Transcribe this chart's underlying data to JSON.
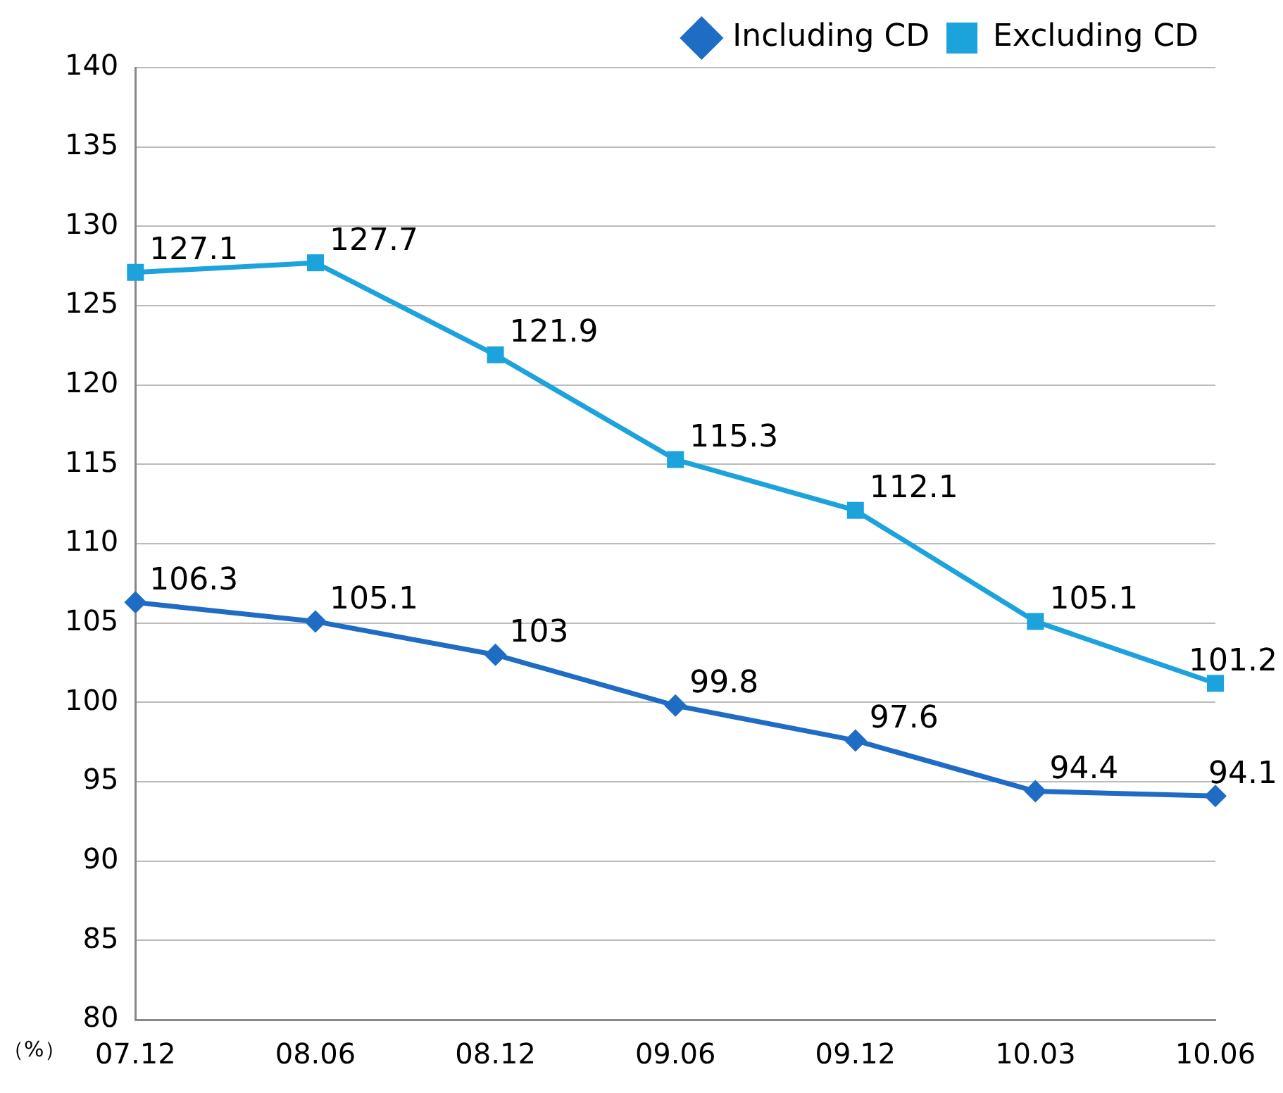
{
  "chart_data": {
    "type": "line",
    "categories": [
      "07.12",
      "08.06",
      "08.12",
      "09.06",
      "09.12",
      "10.03",
      "10.06"
    ],
    "series": [
      {
        "name": "Including CD",
        "color": "#1f6cc4",
        "marker": "diamond",
        "values": [
          106.3,
          105.1,
          103,
          99.8,
          97.6,
          94.4,
          94.1
        ]
      },
      {
        "name": "Excluding CD",
        "color": "#1ca3dc",
        "marker": "square",
        "values": [
          127.1,
          127.7,
          121.9,
          115.3,
          112.1,
          105.1,
          101.2
        ]
      }
    ],
    "ylim": [
      80,
      140
    ],
    "yticks": [
      80,
      85,
      90,
      95,
      100,
      105,
      110,
      115,
      120,
      125,
      130,
      135,
      140
    ],
    "grid": "y",
    "legend": "top right",
    "data_labels": true,
    "line_style": "solid",
    "annotations": [
      "（%）"
    ]
  }
}
